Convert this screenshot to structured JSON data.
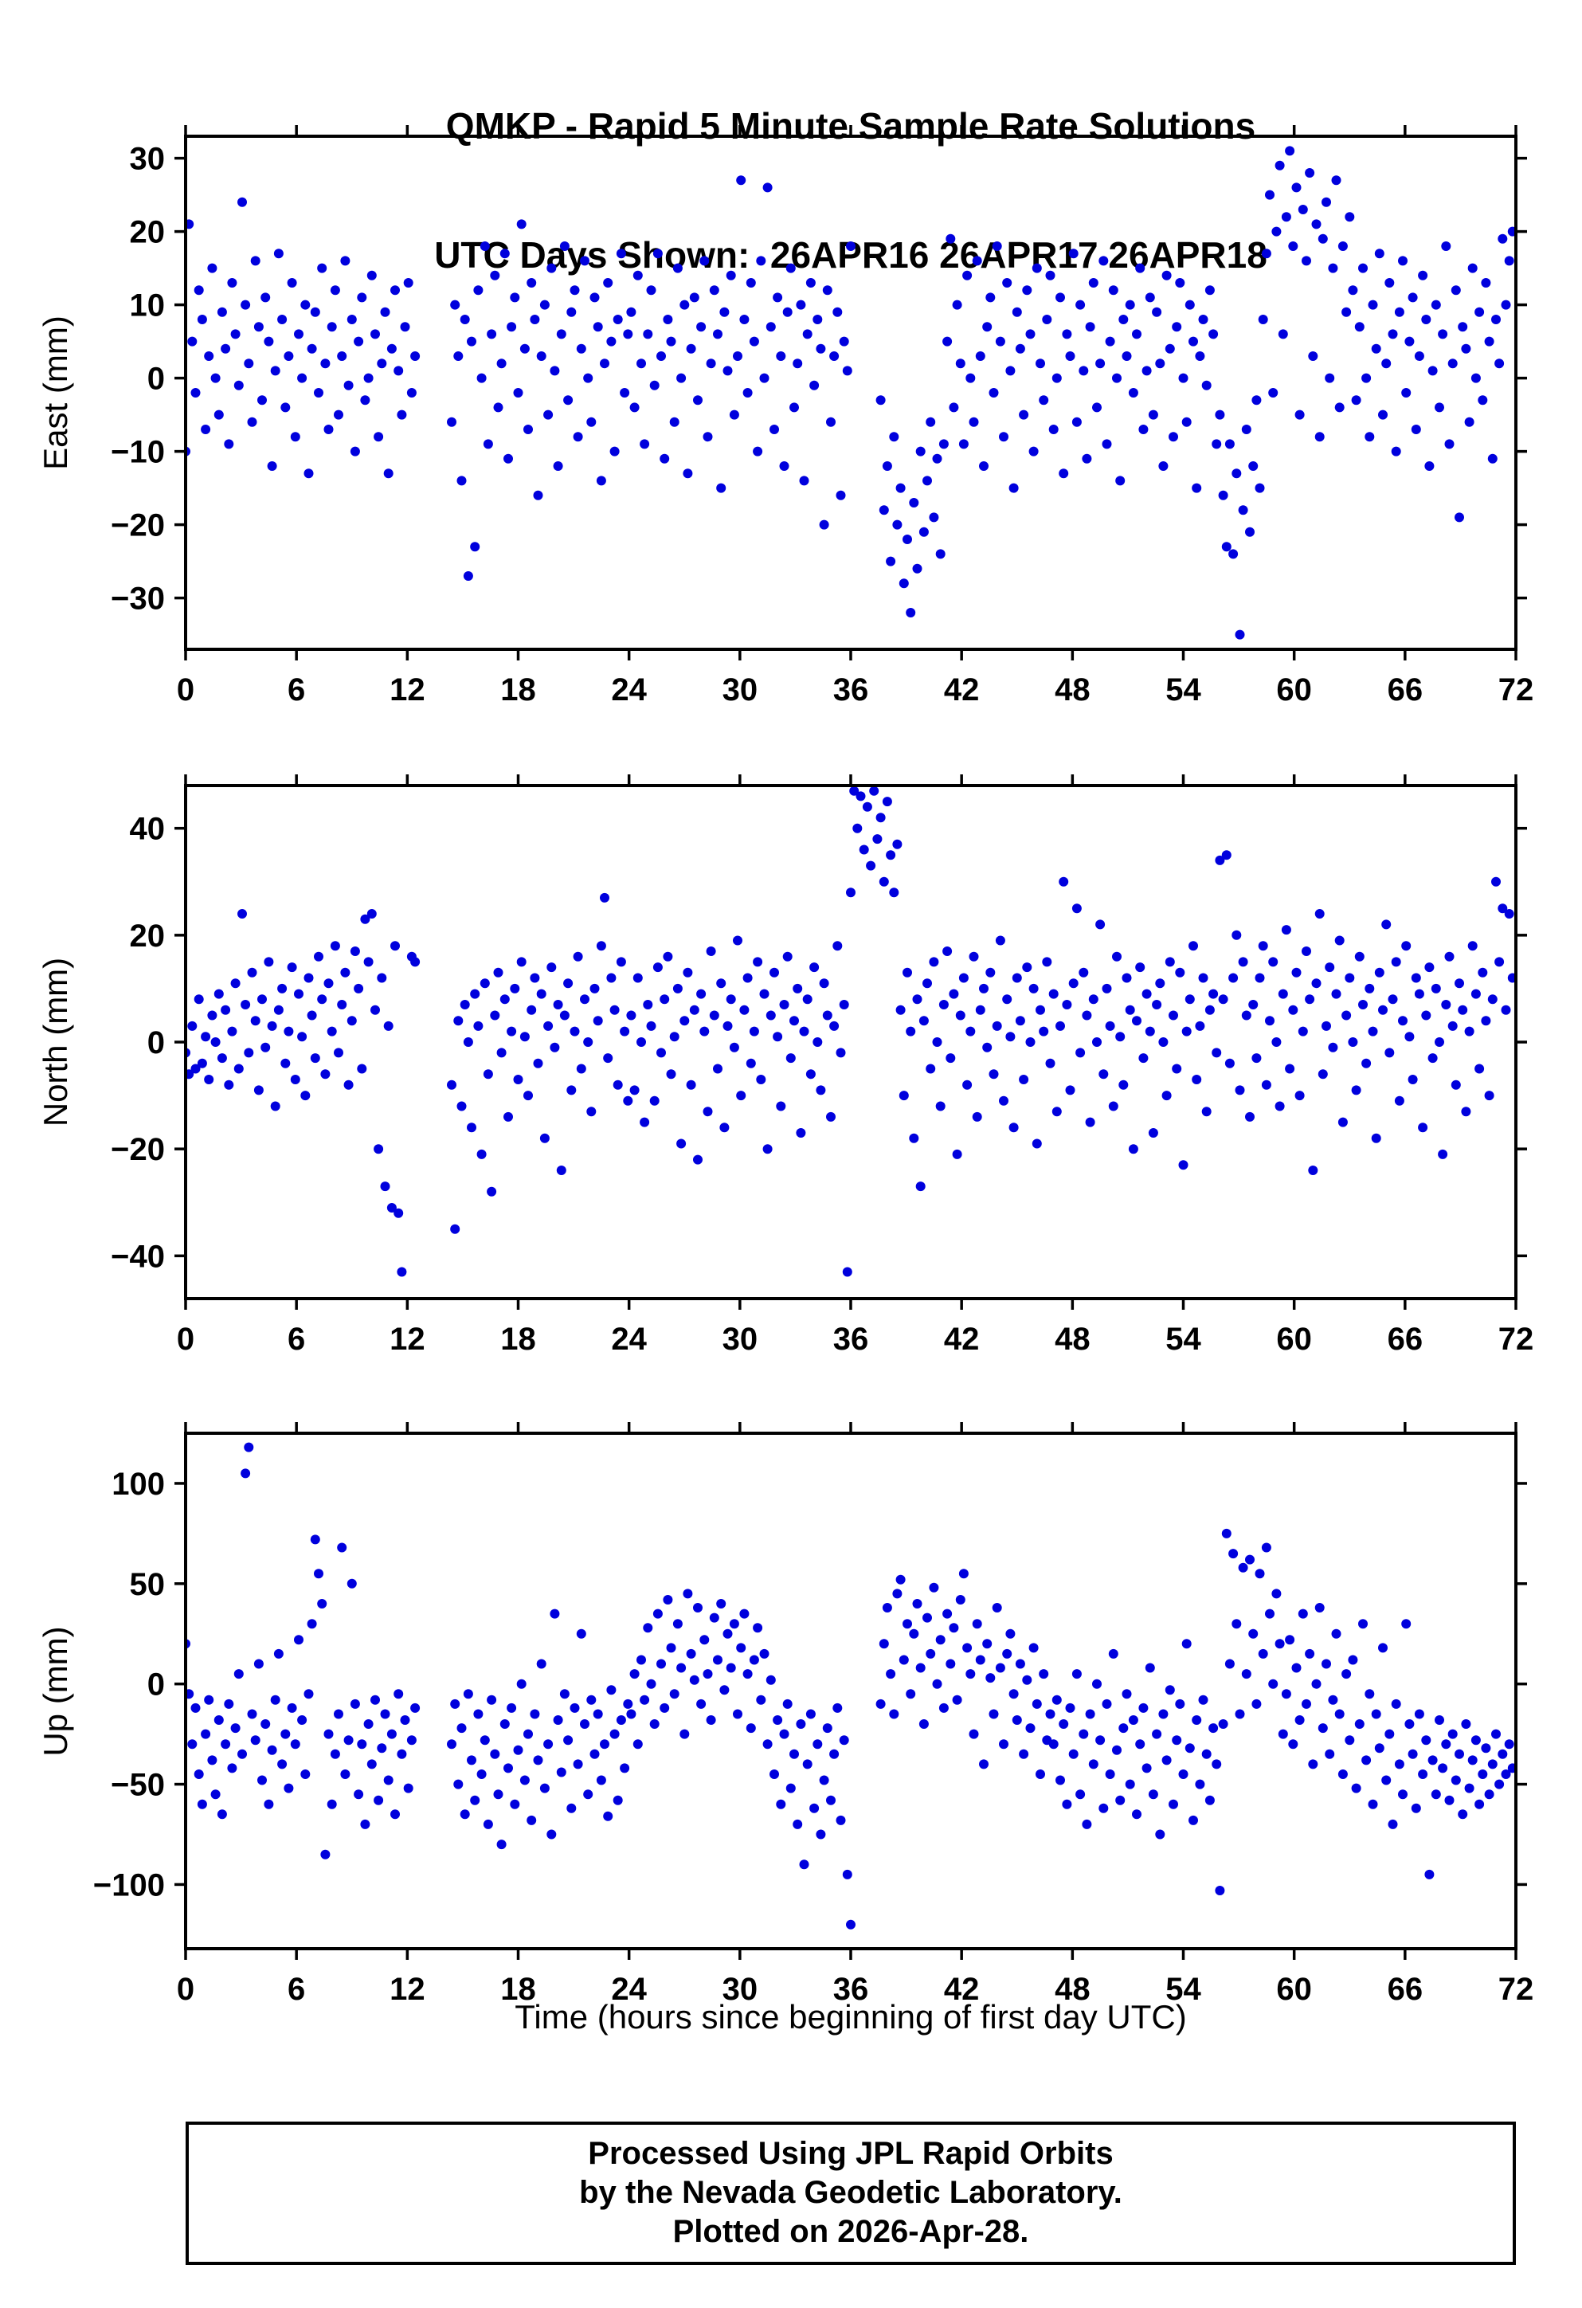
{
  "title": {
    "line1": "QMKP - Rapid 5 Minute Sample Rate Solutions",
    "line2": "UTC Days Shown:  26APR16 26APR17 26APR18"
  },
  "xlabel": "Time (hours since beginning of first day UTC)",
  "footer": {
    "line1": "Processed Using JPL Rapid Orbits",
    "line2": "by the Nevada Geodetic Laboratory.",
    "line3": "Plotted on 2026-Apr-28."
  },
  "point_color": "#0000dd",
  "chart_data": [
    {
      "type": "scatter",
      "name": "east",
      "title": "QMKP - Rapid 5 Minute Sample Rate Solutions",
      "ylabel": "East (mm)",
      "xlim": [
        0,
        72
      ],
      "ylim": [
        -37,
        33
      ],
      "xticks": [
        0,
        6,
        12,
        18,
        24,
        30,
        36,
        42,
        48,
        54,
        60,
        66,
        72
      ],
      "yticks": [
        -30,
        -20,
        -10,
        0,
        10,
        20,
        30
      ],
      "x_start": 0,
      "x_step": 0.18,
      "y": [
        -10,
        21,
        5,
        -2,
        12,
        8,
        -7,
        3,
        15,
        0,
        -5,
        9,
        4,
        -9,
        13,
        6,
        -1,
        24,
        10,
        2,
        -6,
        16,
        7,
        -3,
        11,
        5,
        -12,
        1,
        17,
        8,
        -4,
        3,
        13,
        -8,
        6,
        0,
        10,
        -13,
        4,
        9,
        -2,
        15,
        2,
        -7,
        7,
        12,
        -5,
        3,
        16,
        -1,
        8,
        -10,
        5,
        11,
        -3,
        0,
        14,
        6,
        -8,
        2,
        9,
        -13,
        4,
        12,
        1,
        -5,
        7,
        13,
        -2,
        3,
        null,
        null,
        null,
        null,
        null,
        null,
        null,
        null,
        null,
        null,
        -6,
        10,
        3,
        -14,
        8,
        -27,
        5,
        -23,
        12,
        0,
        18,
        -9,
        6,
        14,
        -4,
        2,
        17,
        -11,
        7,
        11,
        -2,
        21,
        4,
        -7,
        13,
        8,
        -16,
        3,
        10,
        -5,
        15,
        1,
        -12,
        6,
        18,
        -3,
        9,
        12,
        -8,
        4,
        16,
        0,
        -6,
        11,
        7,
        -14,
        2,
        13,
        5,
        -10,
        8,
        17,
        -2,
        6,
        9,
        -4,
        14,
        2,
        -9,
        6,
        12,
        -1,
        17,
        3,
        -11,
        8,
        5,
        -6,
        15,
        0,
        10,
        -13,
        4,
        11,
        -3,
        7,
        16,
        -8,
        2,
        12,
        6,
        -15,
        9,
        1,
        14,
        -5,
        3,
        27,
        8,
        -2,
        13,
        5,
        -10,
        16,
        0,
        26,
        7,
        -7,
        11,
        3,
        -12,
        9,
        15,
        -4,
        2,
        10,
        -14,
        6,
        13,
        -1,
        8,
        4,
        -20,
        12,
        -6,
        3,
        9,
        -16,
        5,
        1,
        18,
        null,
        null,
        null,
        null,
        null,
        null,
        null,
        null,
        -3,
        -18,
        -12,
        -25,
        -8,
        -20,
        -15,
        -28,
        -22,
        -32,
        -17,
        -26,
        -10,
        -21,
        -14,
        -6,
        -19,
        -11,
        -24,
        -9,
        5,
        19,
        -4,
        10,
        2,
        -9,
        14,
        0,
        -6,
        16,
        3,
        -12,
        7,
        11,
        -2,
        18,
        5,
        -8,
        13,
        1,
        -15,
        9,
        4,
        -5,
        12,
        6,
        -10,
        15,
        2,
        -3,
        8,
        14,
        -7,
        0,
        11,
        -13,
        6,
        3,
        17,
        -6,
        10,
        1,
        -11,
        7,
        13,
        -4,
        2,
        16,
        -9,
        5,
        12,
        0,
        -14,
        8,
        3,
        10,
        -2,
        6,
        15,
        -7,
        1,
        11,
        -5,
        9,
        2,
        -12,
        14,
        4,
        -8,
        7,
        13,
        0,
        -6,
        10,
        5,
        -15,
        3,
        8,
        -1,
        12,
        6,
        -9,
        -5,
        -16,
        -23,
        -9,
        -24,
        -13,
        -35,
        -18,
        -7,
        -21,
        -12,
        -3,
        -15,
        8,
        17,
        25,
        -2,
        20,
        29,
        6,
        22,
        31,
        18,
        26,
        -5,
        23,
        16,
        28,
        3,
        21,
        -8,
        19,
        24,
        0,
        15,
        27,
        -4,
        18,
        9,
        22,
        12,
        -3,
        7,
        15,
        0,
        -8,
        10,
        4,
        17,
        -5,
        2,
        13,
        6,
        -10,
        9,
        16,
        -2,
        5,
        11,
        -7,
        3,
        14,
        8,
        -12,
        1,
        10,
        -4,
        6,
        18,
        -9,
        2,
        12,
        -19,
        7,
        4,
        -6,
        15,
        0,
        9,
        -3,
        13,
        5,
        -11,
        8,
        2,
        19,
        10,
        16,
        20
      ]
    },
    {
      "type": "scatter",
      "name": "north",
      "ylabel": "North (mm)",
      "xlim": [
        0,
        72
      ],
      "ylim": [
        -48,
        48
      ],
      "xticks": [
        0,
        6,
        12,
        18,
        24,
        30,
        36,
        42,
        48,
        54,
        60,
        66,
        72
      ],
      "yticks": [
        -40,
        -20,
        0,
        20,
        40
      ],
      "x_start": 0,
      "x_step": 0.18,
      "y": [
        -2,
        -6,
        3,
        -5,
        8,
        -4,
        1,
        -7,
        5,
        0,
        9,
        -3,
        6,
        -8,
        2,
        11,
        -5,
        24,
        7,
        -2,
        13,
        4,
        -9,
        8,
        -1,
        15,
        3,
        -12,
        6,
        10,
        -4,
        2,
        14,
        -7,
        9,
        1,
        -10,
        12,
        5,
        -3,
        16,
        8,
        -6,
        11,
        2,
        18,
        -2,
        7,
        13,
        -8,
        4,
        17,
        10,
        -5,
        23,
        15,
        24,
        6,
        -20,
        12,
        -27,
        3,
        -31,
        18,
        -32,
        -43,
        null,
        null,
        16,
        15,
        null,
        null,
        null,
        null,
        null,
        null,
        null,
        null,
        null,
        null,
        -8,
        -35,
        4,
        -12,
        7,
        0,
        -16,
        9,
        3,
        -21,
        11,
        -6,
        -28,
        5,
        13,
        -2,
        8,
        -14,
        2,
        10,
        -7,
        15,
        1,
        -10,
        6,
        12,
        -4,
        9,
        -18,
        3,
        14,
        -1,
        7,
        -24,
        5,
        11,
        -9,
        2,
        16,
        -5,
        8,
        0,
        -13,
        10,
        4,
        18,
        27,
        -3,
        12,
        6,
        -8,
        15,
        2,
        -11,
        5,
        -9,
        12,
        0,
        -15,
        7,
        3,
        -11,
        14,
        -2,
        8,
        16,
        -6,
        1,
        10,
        -19,
        4,
        13,
        -8,
        6,
        -22,
        9,
        2,
        -13,
        17,
        5,
        -5,
        11,
        -16,
        3,
        8,
        -1,
        19,
        -10,
        6,
        12,
        -4,
        2,
        15,
        -7,
        9,
        -20,
        5,
        13,
        1,
        -12,
        7,
        16,
        -3,
        4,
        10,
        -17,
        2,
        8,
        -6,
        14,
        0,
        -9,
        11,
        5,
        -14,
        3,
        18,
        -2,
        7,
        -43,
        28,
        47,
        40,
        46,
        36,
        44,
        33,
        47,
        38,
        42,
        30,
        45,
        35,
        28,
        37,
        6,
        -10,
        13,
        2,
        -18,
        8,
        -27,
        4,
        11,
        -5,
        15,
        0,
        -12,
        7,
        17,
        -3,
        9,
        -21,
        5,
        12,
        -8,
        2,
        16,
        -14,
        6,
        10,
        -1,
        13,
        -6,
        3,
        19,
        -11,
        8,
        1,
        -16,
        12,
        4,
        -7,
        14,
        0,
        10,
        -19,
        6,
        2,
        15,
        -4,
        9,
        -13,
        3,
        30,
        7,
        -9,
        11,
        25,
        -2,
        13,
        5,
        -15,
        8,
        0,
        22,
        -6,
        10,
        3,
        -12,
        16,
        1,
        -8,
        12,
        6,
        -20,
        4,
        14,
        -3,
        9,
        2,
        -17,
        7,
        11,
        0,
        -10,
        15,
        5,
        -5,
        13,
        -23,
        2,
        8,
        18,
        -7,
        3,
        12,
        -13,
        6,
        9,
        -2,
        34,
        8,
        35,
        -4,
        12,
        20,
        -9,
        15,
        5,
        -14,
        7,
        -3,
        12,
        18,
        -8,
        4,
        15,
        0,
        -12,
        9,
        21,
        -5,
        6,
        13,
        -10,
        2,
        17,
        8,
        -24,
        11,
        24,
        -6,
        3,
        14,
        -1,
        9,
        19,
        -15,
        5,
        12,
        0,
        -9,
        16,
        7,
        -4,
        10,
        2,
        -18,
        13,
        6,
        22,
        -2,
        8,
        15,
        -11,
        4,
        18,
        1,
        -7,
        12,
        9,
        -16,
        5,
        14,
        -3,
        10,
        0,
        -21,
        7,
        16,
        3,
        -8,
        11,
        6,
        -13,
        2,
        18,
        9,
        -5,
        13,
        4,
        -10,
        8,
        30,
        15,
        25,
        6,
        24,
        12
      ]
    },
    {
      "type": "scatter",
      "name": "up",
      "ylabel": "Up (mm)",
      "xlim": [
        0,
        72
      ],
      "ylim": [
        -132,
        125
      ],
      "xticks": [
        0,
        6,
        12,
        18,
        24,
        30,
        36,
        42,
        48,
        54,
        60,
        66,
        72
      ],
      "yticks": [
        -100,
        -50,
        0,
        50,
        100
      ],
      "x_start": 0,
      "x_step": 0.18,
      "y": [
        20,
        -5,
        -30,
        -12,
        -45,
        -60,
        -25,
        -8,
        -38,
        -55,
        -18,
        -65,
        -30,
        -10,
        -42,
        -22,
        5,
        -35,
        105,
        118,
        -15,
        -28,
        10,
        -48,
        -20,
        -60,
        -33,
        -8,
        15,
        -40,
        -25,
        -52,
        -12,
        -30,
        22,
        -18,
        -45,
        -5,
        30,
        72,
        55,
        40,
        -85,
        -25,
        -60,
        -35,
        -15,
        68,
        -45,
        -28,
        50,
        -10,
        -55,
        -30,
        -70,
        -20,
        -40,
        -8,
        -58,
        -32,
        -15,
        -48,
        -25,
        -65,
        -5,
        -35,
        -18,
        -52,
        -28,
        -12,
        null,
        null,
        null,
        null,
        null,
        null,
        null,
        null,
        null,
        null,
        -30,
        -10,
        -50,
        -22,
        -65,
        -5,
        -38,
        -58,
        -15,
        -45,
        -28,
        -70,
        -8,
        -35,
        -55,
        -80,
        -20,
        -42,
        -12,
        -60,
        -33,
        0,
        -48,
        -25,
        -68,
        -15,
        -38,
        10,
        -52,
        -30,
        -75,
        35,
        -18,
        -44,
        -5,
        -28,
        -62,
        -12,
        -40,
        25,
        -20,
        -55,
        -8,
        -35,
        -15,
        -48,
        -30,
        -66,
        -3,
        -25,
        -58,
        -18,
        -42,
        -10,
        -15,
        5,
        -30,
        12,
        -8,
        28,
        0,
        -20,
        35,
        10,
        -12,
        42,
        18,
        -5,
        30,
        8,
        -25,
        45,
        15,
        2,
        38,
        -10,
        22,
        5,
        -18,
        33,
        12,
        40,
        -3,
        25,
        8,
        30,
        -15,
        18,
        35,
        5,
        -22,
        12,
        28,
        -8,
        15,
        -30,
        2,
        -45,
        -18,
        -60,
        -25,
        -10,
        -52,
        -35,
        -70,
        -20,
        -90,
        -40,
        -15,
        -62,
        -30,
        -75,
        -48,
        -22,
        -58,
        -35,
        -12,
        -68,
        -28,
        -95,
        -120,
        null,
        null,
        null,
        null,
        null,
        null,
        null,
        null,
        -10,
        20,
        38,
        5,
        -15,
        45,
        52,
        12,
        30,
        -5,
        25,
        40,
        8,
        -20,
        33,
        15,
        48,
        0,
        22,
        -12,
        35,
        10,
        28,
        -8,
        42,
        55,
        18,
        5,
        -25,
        30,
        12,
        -40,
        20,
        3,
        -15,
        38,
        8,
        -30,
        15,
        25,
        -5,
        -18,
        10,
        -35,
        2,
        -22,
        18,
        -10,
        -45,
        5,
        -28,
        -15,
        -30,
        -8,
        -48,
        -20,
        -60,
        -12,
        -35,
        5,
        -55,
        -25,
        -70,
        -15,
        -40,
        0,
        -28,
        -62,
        -10,
        -45,
        15,
        -33,
        -58,
        -22,
        -5,
        -50,
        -18,
        -65,
        -30,
        -12,
        -42,
        8,
        -55,
        -25,
        -75,
        -15,
        -38,
        -3,
        -60,
        -28,
        -10,
        -45,
        20,
        -32,
        -68,
        -18,
        -50,
        -8,
        -35,
        -58,
        -22,
        -40,
        -103,
        -20,
        75,
        10,
        65,
        30,
        -15,
        58,
        5,
        62,
        25,
        -10,
        55,
        15,
        68,
        35,
        0,
        45,
        20,
        -25,
        -5,
        22,
        -30,
        8,
        -18,
        35,
        -10,
        15,
        -40,
        0,
        38,
        -22,
        10,
        -35,
        -8,
        25,
        -15,
        -45,
        5,
        -28,
        12,
        -52,
        -20,
        30,
        -38,
        -5,
        -60,
        -15,
        -32,
        18,
        -48,
        -25,
        -70,
        -10,
        -40,
        -55,
        30,
        -20,
        -35,
        -62,
        -15,
        -45,
        -28,
        -95,
        -38,
        -55,
        -18,
        -42,
        -30,
        -58,
        -25,
        -48,
        -35,
        -65,
        -20,
        -52,
        -38,
        -28,
        -60,
        -45,
        -32,
        -55,
        -40,
        -25,
        -50,
        -35,
        -45,
        -30,
        -42
      ]
    }
  ]
}
